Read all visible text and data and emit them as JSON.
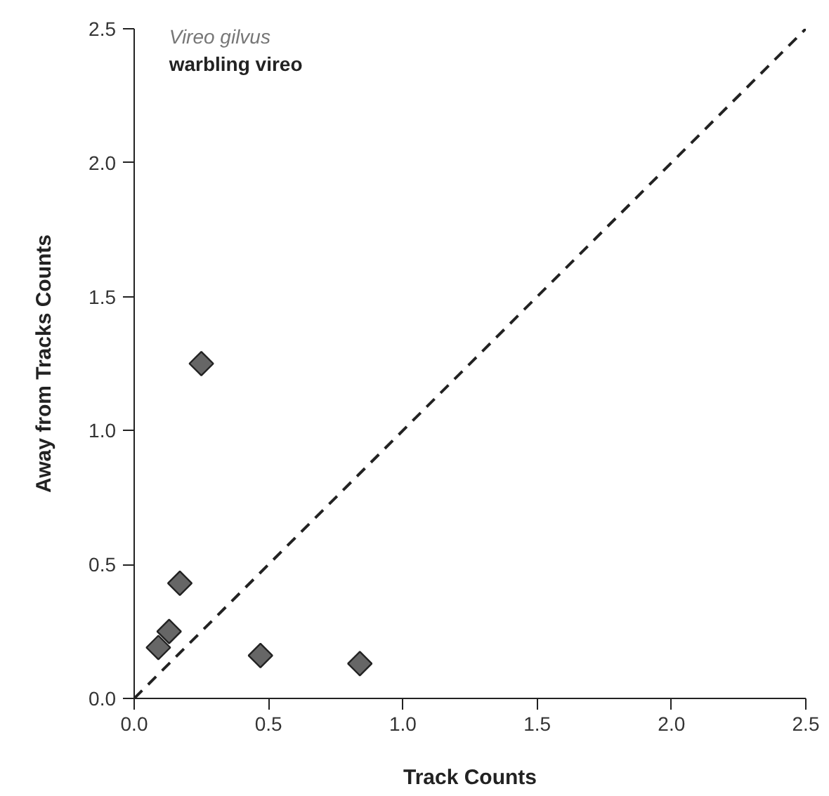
{
  "chart_data": {
    "type": "scatter",
    "xlabel": "Track Counts",
    "ylabel": "Away from Tracks Counts",
    "annotations": [
      "Vireo gilvus",
      "warbling vireo"
    ],
    "xlim": [
      0,
      2.5
    ],
    "ylim": [
      0,
      2.5
    ],
    "xticks": [
      {
        "value": 0,
        "label": "0.0"
      },
      0.5,
      {
        "value": 1,
        "label": "1.0"
      },
      1.5,
      {
        "value": 2,
        "label": "2.0"
      },
      2.5
    ],
    "yticks": [
      {
        "value": 0,
        "label": "0.0"
      },
      0.5,
      {
        "value": 1,
        "label": "1.0"
      },
      1.5,
      {
        "value": 2,
        "label": "2.0"
      },
      2.5
    ],
    "grid": false,
    "marker": "diamond",
    "series": [
      {
        "color": "#666666",
        "x": [
          0.09,
          0.13,
          0.17,
          0.25,
          0.47,
          0.84
        ],
        "values": [
          0.19,
          0.25,
          0.43,
          1.25,
          0.16,
          0.13
        ]
      },
      {
        "type": "line",
        "color": "#222222",
        "line_style": "dashed",
        "marker": "none",
        "x": [
          0,
          2.5
        ],
        "values": [
          0,
          2.5
        ]
      }
    ]
  }
}
